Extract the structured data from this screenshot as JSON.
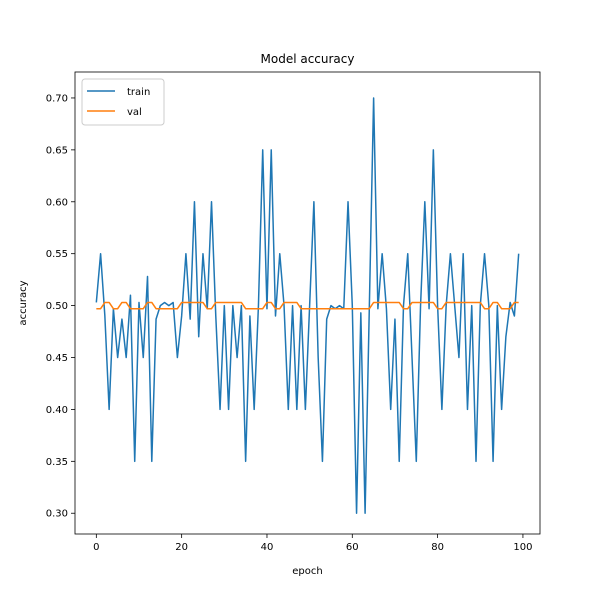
{
  "chart_data": {
    "type": "line",
    "title": "Model accuracy",
    "xlabel": "epoch",
    "ylabel": "accuracy",
    "xlim": [
      -5,
      104
    ],
    "ylim": [
      0.28,
      0.725
    ],
    "xticks": [
      0,
      20,
      40,
      60,
      80,
      100
    ],
    "xtick_labels": [
      "0",
      "20",
      "40",
      "60",
      "80",
      "100"
    ],
    "yticks": [
      0.3,
      0.35,
      0.4,
      0.45,
      0.5,
      0.55,
      0.6,
      0.65,
      0.7
    ],
    "ytick_labels": [
      "0.30",
      "0.35",
      "0.40",
      "0.45",
      "0.50",
      "0.55",
      "0.60",
      "0.65",
      "0.70"
    ],
    "grid": false,
    "legend_position": "top-left",
    "series": [
      {
        "name": "train",
        "color": "#1f77b4",
        "x": [
          0,
          1,
          2,
          3,
          4,
          5,
          6,
          7,
          8,
          9,
          10,
          11,
          12,
          13,
          14,
          15,
          16,
          17,
          18,
          19,
          20,
          21,
          22,
          23,
          24,
          25,
          26,
          27,
          28,
          29,
          30,
          31,
          32,
          33,
          34,
          35,
          36,
          37,
          38,
          39,
          40,
          41,
          42,
          43,
          44,
          45,
          46,
          47,
          48,
          49,
          50,
          51,
          52,
          53,
          54,
          55,
          56,
          57,
          58,
          59,
          60,
          61,
          62,
          63,
          64,
          65,
          66,
          67,
          68,
          69,
          70,
          71,
          72,
          73,
          74,
          75,
          76,
          77,
          78,
          79,
          80,
          81,
          82,
          83,
          84,
          85,
          86,
          87,
          88,
          89,
          90,
          91,
          92,
          93,
          94,
          95,
          96,
          97,
          98,
          99
        ],
        "values": [
          0.503,
          0.55,
          0.49,
          0.4,
          0.497,
          0.45,
          0.487,
          0.45,
          0.51,
          0.35,
          0.503,
          0.45,
          0.528,
          0.35,
          0.487,
          0.5,
          0.503,
          0.5,
          0.503,
          0.45,
          0.49,
          0.55,
          0.487,
          0.6,
          0.47,
          0.55,
          0.497,
          0.6,
          0.49,
          0.4,
          0.5,
          0.4,
          0.5,
          0.45,
          0.5,
          0.35,
          0.49,
          0.4,
          0.5,
          0.65,
          0.497,
          0.65,
          0.49,
          0.55,
          0.5,
          0.4,
          0.5,
          0.4,
          0.5,
          0.4,
          0.5,
          0.6,
          0.45,
          0.35,
          0.487,
          0.5,
          0.497,
          0.5,
          0.497,
          0.6,
          0.5,
          0.3,
          0.493,
          0.3,
          0.5,
          0.7,
          0.497,
          0.55,
          0.497,
          0.4,
          0.487,
          0.35,
          0.5,
          0.55,
          0.45,
          0.35,
          0.5,
          0.6,
          0.497,
          0.65,
          0.5,
          0.4,
          0.5,
          0.55,
          0.5,
          0.45,
          0.55,
          0.4,
          0.5,
          0.35,
          0.5,
          0.55,
          0.5,
          0.35,
          0.5,
          0.4,
          0.47,
          0.503,
          0.49,
          0.55
        ]
      },
      {
        "name": "val",
        "color": "#ff7f0e",
        "x": [
          0,
          1,
          2,
          3,
          4,
          5,
          6,
          7,
          8,
          9,
          10,
          11,
          12,
          13,
          14,
          15,
          16,
          17,
          18,
          19,
          20,
          21,
          22,
          23,
          24,
          25,
          26,
          27,
          28,
          29,
          30,
          31,
          32,
          33,
          34,
          35,
          36,
          37,
          38,
          39,
          40,
          41,
          42,
          43,
          44,
          45,
          46,
          47,
          48,
          49,
          50,
          51,
          52,
          53,
          54,
          55,
          56,
          57,
          58,
          59,
          60,
          61,
          62,
          63,
          64,
          65,
          66,
          67,
          68,
          69,
          70,
          71,
          72,
          73,
          74,
          75,
          76,
          77,
          78,
          79,
          80,
          81,
          82,
          83,
          84,
          85,
          86,
          87,
          88,
          89,
          90,
          91,
          92,
          93,
          94,
          95,
          96,
          97,
          98,
          99
        ],
        "values": [
          0.497,
          0.497,
          0.503,
          0.503,
          0.497,
          0.497,
          0.503,
          0.503,
          0.497,
          0.497,
          0.497,
          0.497,
          0.503,
          0.503,
          0.497,
          0.497,
          0.497,
          0.497,
          0.497,
          0.497,
          0.503,
          0.503,
          0.503,
          0.503,
          0.503,
          0.503,
          0.497,
          0.497,
          0.503,
          0.503,
          0.503,
          0.503,
          0.503,
          0.503,
          0.503,
          0.497,
          0.497,
          0.497,
          0.497,
          0.497,
          0.503,
          0.503,
          0.497,
          0.497,
          0.503,
          0.503,
          0.503,
          0.503,
          0.497,
          0.497,
          0.497,
          0.497,
          0.497,
          0.497,
          0.497,
          0.497,
          0.497,
          0.497,
          0.497,
          0.497,
          0.497,
          0.497,
          0.497,
          0.497,
          0.497,
          0.503,
          0.503,
          0.503,
          0.503,
          0.503,
          0.503,
          0.503,
          0.497,
          0.497,
          0.503,
          0.503,
          0.503,
          0.503,
          0.503,
          0.503,
          0.497,
          0.497,
          0.503,
          0.503,
          0.503,
          0.503,
          0.503,
          0.503,
          0.503,
          0.503,
          0.503,
          0.497,
          0.497,
          0.503,
          0.503,
          0.497,
          0.497,
          0.497,
          0.503,
          0.503
        ]
      }
    ]
  }
}
